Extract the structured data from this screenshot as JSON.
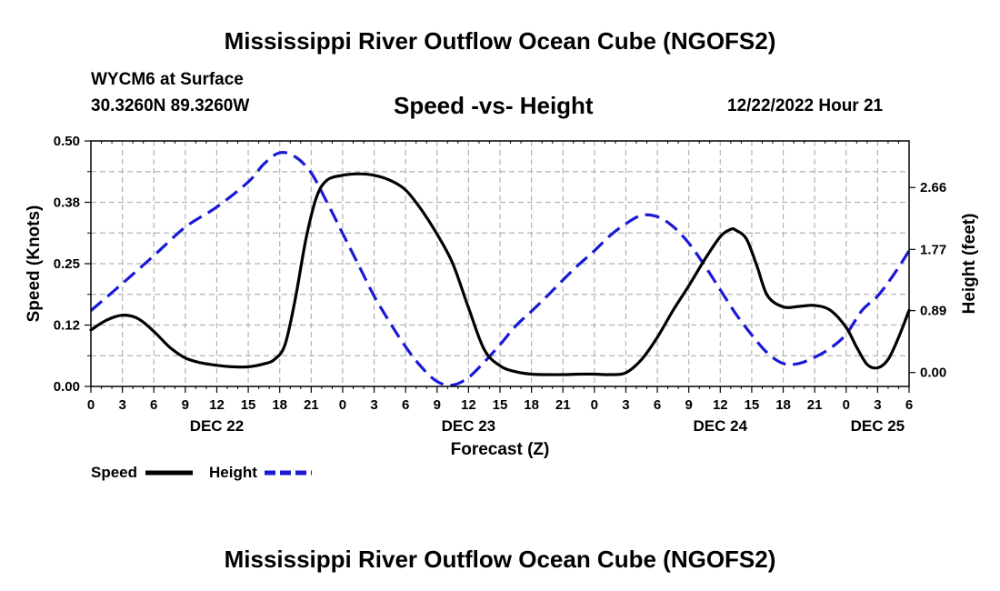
{
  "header": {
    "title": "Mississippi River Outflow Ocean Cube (NGOFS2)",
    "station": "WYCM6 at Surface",
    "coords": "30.3260N  89.3260W",
    "subtitle": "Speed -vs- Height",
    "datetime": "12/22/2022 Hour 21"
  },
  "footer": {
    "title": "Mississippi River Outflow Ocean Cube (NGOFS2)"
  },
  "colors": {
    "speed": "#000000",
    "height": "#1a1ad6",
    "grid": "#b4b4b4"
  },
  "chart_data": {
    "type": "line",
    "title": "Speed -vs- Height",
    "xlabel": "Forecast (Z)",
    "ylabel": "Speed (Knots)",
    "y2label": "Height (feet)",
    "x_unit": "hours from DEC 22 00Z",
    "xlim": [
      0,
      78
    ],
    "ylim": [
      0,
      0.5
    ],
    "y2lim": [
      -0.2,
      3.33
    ],
    "x_ticks": [
      0,
      3,
      6,
      9,
      12,
      15,
      18,
      21,
      24,
      27,
      30,
      33,
      36,
      39,
      42,
      45,
      48,
      51,
      54,
      57,
      60,
      63,
      66,
      69,
      72,
      75,
      78
    ],
    "x_tick_labels": [
      "0",
      "3",
      "6",
      "9",
      "12",
      "15",
      "18",
      "21",
      "0",
      "3",
      "6",
      "9",
      "12",
      "15",
      "18",
      "21",
      "0",
      "3",
      "6",
      "9",
      "12",
      "15",
      "18",
      "21",
      "0",
      "3",
      "6"
    ],
    "day_labels": [
      {
        "x": 12,
        "label": "DEC 22"
      },
      {
        "x": 36,
        "label": "DEC 23"
      },
      {
        "x": 60,
        "label": "DEC 24"
      },
      {
        "x": 75,
        "label": "DEC 25"
      }
    ],
    "y_ticks": [
      0.0,
      0.125,
      0.25,
      0.375,
      0.5
    ],
    "y_tick_labels": [
      "0.00",
      "0.12",
      "0.25",
      "0.38",
      "0.50"
    ],
    "y2_ticks": [
      0.0,
      0.89,
      1.77,
      2.66
    ],
    "y2_tick_labels": [
      "0.00",
      "0.89",
      "1.77",
      "2.66"
    ],
    "legend": [
      {
        "name": "Speed",
        "style": "solid"
      },
      {
        "name": "Height",
        "style": "dashed"
      }
    ],
    "series": [
      {
        "name": "Speed",
        "axis": "left",
        "style": "solid",
        "x": [
          0,
          1.5,
          3,
          4.5,
          6,
          7.5,
          9,
          10.5,
          12,
          13.5,
          15,
          16.5,
          17.5,
          18.5,
          19.5,
          20.5,
          21.5,
          22.5,
          24,
          25.5,
          27,
          28.5,
          30,
          31.5,
          33,
          34.5,
          36,
          37.5,
          39,
          40.5,
          42,
          43.5,
          45,
          46.5,
          48,
          49.5,
          51,
          52.5,
          54,
          55.5,
          57,
          58.5,
          60,
          61,
          61.5,
          62.5,
          63.5,
          64.5,
          66,
          67.5,
          69,
          70.5,
          72,
          73,
          74,
          75,
          76,
          77,
          78
        ],
        "values": [
          0.115,
          0.135,
          0.145,
          0.138,
          0.112,
          0.08,
          0.058,
          0.048,
          0.043,
          0.04,
          0.04,
          0.046,
          0.055,
          0.085,
          0.18,
          0.3,
          0.385,
          0.42,
          0.43,
          0.433,
          0.43,
          0.42,
          0.4,
          0.36,
          0.31,
          0.25,
          0.16,
          0.075,
          0.042,
          0.03,
          0.025,
          0.024,
          0.024,
          0.025,
          0.025,
          0.024,
          0.028,
          0.055,
          0.1,
          0.155,
          0.205,
          0.258,
          0.305,
          0.32,
          0.318,
          0.3,
          0.245,
          0.185,
          0.162,
          0.163,
          0.165,
          0.155,
          0.12,
          0.08,
          0.045,
          0.038,
          0.055,
          0.1,
          0.155
        ]
      },
      {
        "name": "Height",
        "axis": "right",
        "style": "dashed",
        "x": [
          0,
          3,
          6,
          9,
          12,
          15,
          16.5,
          18,
          19.5,
          21,
          22.5,
          24,
          25.5,
          27,
          28.5,
          30,
          31.5,
          33,
          34.5,
          36,
          37.5,
          39,
          40.5,
          42,
          43.5,
          45,
          46.5,
          48,
          49.5,
          51,
          52.5,
          54,
          55.5,
          57,
          58.5,
          60,
          61.5,
          63,
          64.5,
          66,
          67.5,
          69,
          70.5,
          72,
          73.5,
          75,
          76.5,
          78
        ],
        "values": [
          0.89,
          1.28,
          1.68,
          2.09,
          2.38,
          2.74,
          3.0,
          3.16,
          3.1,
          2.87,
          2.45,
          2.0,
          1.55,
          1.1,
          0.72,
          0.37,
          0.08,
          -0.13,
          -0.18,
          -0.07,
          0.15,
          0.4,
          0.67,
          0.88,
          1.1,
          1.33,
          1.55,
          1.75,
          1.97,
          2.14,
          2.26,
          2.24,
          2.1,
          1.86,
          1.54,
          1.19,
          0.84,
          0.54,
          0.28,
          0.13,
          0.13,
          0.22,
          0.35,
          0.55,
          0.89,
          1.1,
          1.4,
          1.75
        ]
      }
    ]
  }
}
